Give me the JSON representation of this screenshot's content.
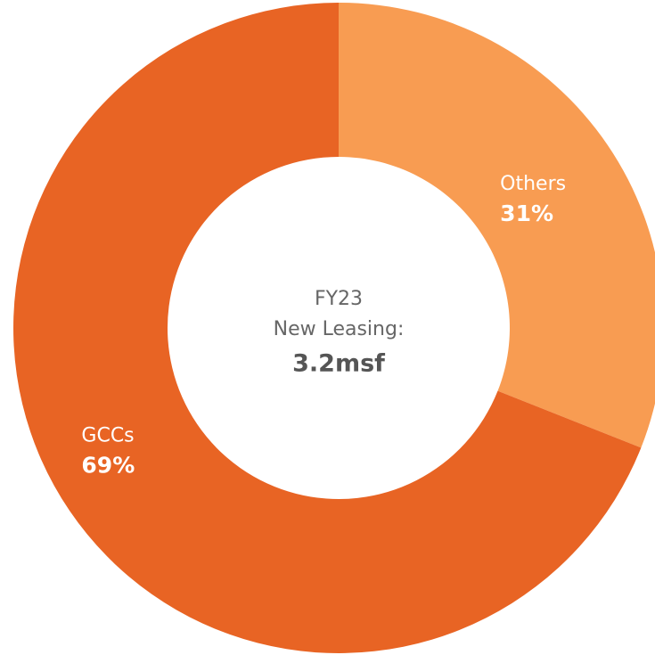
{
  "chart_data": {
    "type": "donut",
    "categories": [
      "Others",
      "GCCs"
    ],
    "values": [
      31,
      69
    ],
    "value_labels": [
      "31%",
      "69%"
    ],
    "colors": [
      "#f89c52",
      "#e86424"
    ],
    "center_text": [
      "FY23",
      "New Leasing:"
    ],
    "center_value": "3.2msf"
  }
}
